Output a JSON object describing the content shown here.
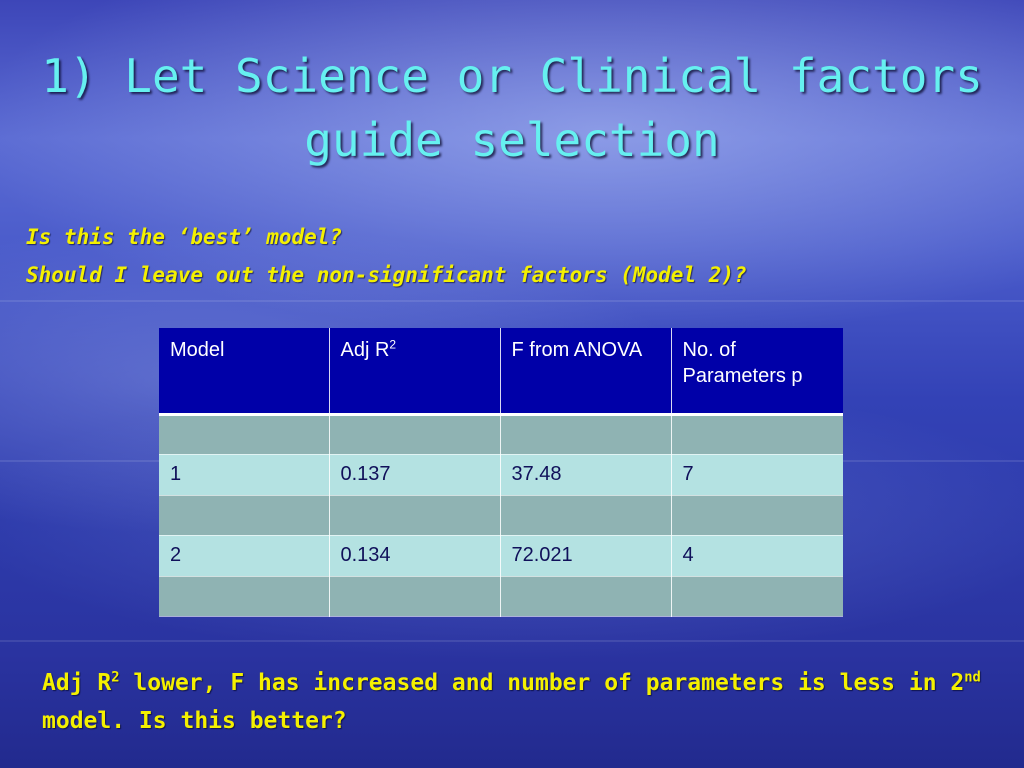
{
  "slide": {
    "title": "1) Let Science or Clinical factors guide selection",
    "question_1": "Is this the ‘best’ model?",
    "question_2": "Should I leave out the non-significant factors (Model 2)?",
    "conclusion": {
      "part1": "Adj R",
      "sup1": "2",
      "part2": " lower, F has increased and number of parameters is less in 2",
      "sup2": "nd",
      "part3": " model. Is this better?"
    }
  },
  "table": {
    "headers": {
      "model": "Model",
      "adj_r2": "Adj R",
      "adj_r2_sup": "2",
      "f_anova": "F from ANOVA",
      "params": "No. of Parameters p"
    },
    "rows": [
      {
        "model": "",
        "adj_r2": "",
        "f": "",
        "p": ""
      },
      {
        "model": "1",
        "adj_r2": "0.137",
        "f": "37.48",
        "p": "7"
      },
      {
        "model": "",
        "adj_r2": "",
        "f": "",
        "p": ""
      },
      {
        "model": "2",
        "adj_r2": "0.134",
        "f": "72.021",
        "p": "4"
      },
      {
        "model": "",
        "adj_r2": "",
        "f": "",
        "p": ""
      }
    ]
  },
  "colors": {
    "title": "#66f0f0",
    "text_yellow": "#f4f000",
    "table_header": "#0000a8",
    "row_light": "#b4e2e2",
    "row_dark": "#8fb3b3"
  }
}
